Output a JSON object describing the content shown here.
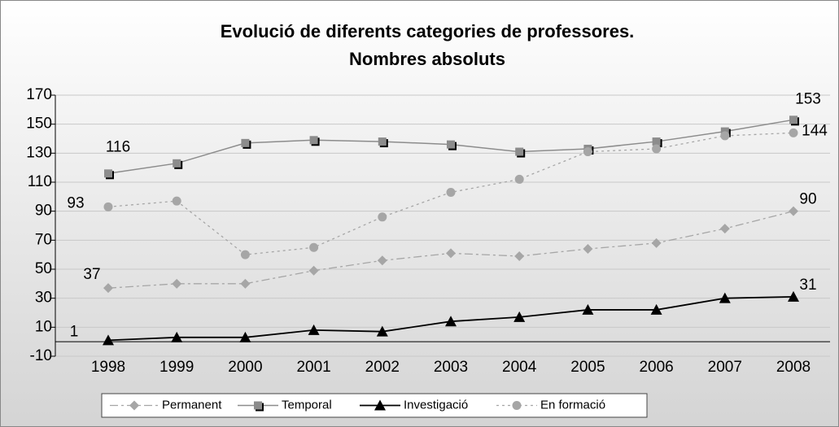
{
  "chart_data": {
    "type": "line",
    "title": [
      "Evolució de diferents categories de professores.",
      "Nombres absoluts"
    ],
    "categories": [
      "1998",
      "1999",
      "2000",
      "2001",
      "2002",
      "2003",
      "2004",
      "2005",
      "2006",
      "2007",
      "2008"
    ],
    "series": [
      {
        "name": "Permanent",
        "color": "#a6a6a6",
        "values": [
          37,
          40,
          40,
          49,
          56,
          61,
          59,
          64,
          68,
          78,
          90
        ]
      },
      {
        "name": "Temporal",
        "color": "#8c8c8c",
        "values": [
          116,
          123,
          137,
          139,
          138,
          136,
          131,
          133,
          138,
          145,
          153
        ]
      },
      {
        "name": "Investigació",
        "color": "#000000",
        "values": [
          1,
          3,
          3,
          8,
          7,
          14,
          17,
          22,
          22,
          30,
          31
        ]
      },
      {
        "name": "En formació",
        "color": "#a6a6a6",
        "values": [
          93,
          97,
          60,
          65,
          86,
          103,
          112,
          131,
          133,
          142,
          144
        ]
      }
    ],
    "ylim": [
      -10,
      170
    ],
    "yticks": [
      -10,
      10,
      30,
      50,
      70,
      90,
      110,
      130,
      150,
      170
    ],
    "grid": true
  }
}
